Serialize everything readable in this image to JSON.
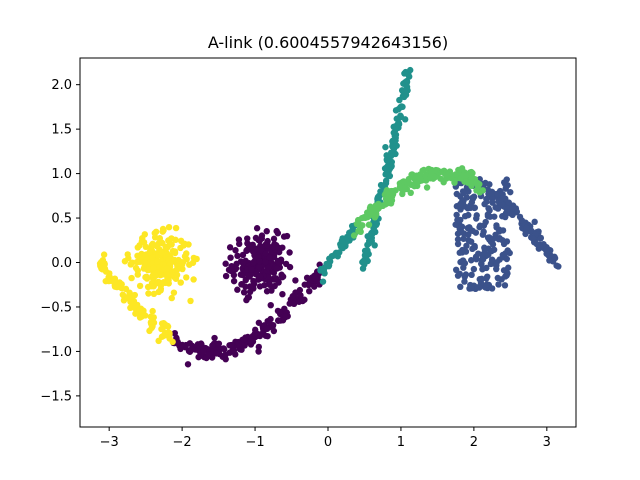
{
  "chart_data": {
    "type": "scatter",
    "title": "A-link (0.6004557942643156)",
    "xlabel": "",
    "ylabel": "",
    "xlim": [
      -3.4,
      3.4
    ],
    "ylim": [
      -1.85,
      2.3
    ],
    "xticks": [
      -3,
      -2,
      -1,
      0,
      1,
      2,
      3
    ],
    "yticks": [
      -1.5,
      -1.0,
      -0.5,
      0.0,
      0.5,
      1.0,
      1.5,
      2.0
    ],
    "ytick_labels": [
      "−1.5",
      "−1.0",
      "−0.5",
      "0.0",
      "0.5",
      "1.0",
      "1.5",
      "2.0"
    ],
    "xtick_labels": [
      "−3",
      "−2",
      "−1",
      "0",
      "1",
      "2",
      "3"
    ],
    "grid": false,
    "legend": "none",
    "clusters": [
      {
        "color": "#440154",
        "description_of_shape": "upper sine arc and blob",
        "curve": {
          "x_from": -2.15,
          "x_to": -0.1,
          "func": "sin",
          "noise": 0.05,
          "count": 180
        },
        "blob": {
          "center": [
            -0.95,
            -0.02
          ],
          "std": [
            0.18,
            0.16
          ],
          "count": 220
        }
      },
      {
        "color": "#3b528b",
        "description_of_shape": "square region and lower-right sine tail",
        "square": {
          "x": [
            1.75,
            2.5
          ],
          "y": [
            -0.3,
            0.95
          ],
          "count": 200
        },
        "curve": {
          "x_from": 2.1,
          "x_to": 3.15,
          "func": "sin",
          "noise": 0.05,
          "count": 110
        }
      },
      {
        "color": "#21918c",
        "description_of_shape": "steep line and middle sine segment",
        "line": {
          "x_from": 0.5,
          "x_to": 1.12,
          "y_from": -0.02,
          "y_to": 2.15,
          "noise": 0.05,
          "count": 150
        },
        "curve": {
          "x_from": -0.1,
          "x_to": 0.38,
          "func": "sin",
          "noise": 0.04,
          "count": 50
        }
      },
      {
        "color": "#5ec962",
        "description_of_shape": "lower sine arc",
        "curve": {
          "x_from": 0.38,
          "x_to": 2.1,
          "func": "sin",
          "noise": 0.05,
          "count": 180
        }
      },
      {
        "color": "#fde725",
        "description_of_shape": "left sine segment and blob",
        "curve": {
          "x_from": -3.15,
          "x_to": -2.15,
          "func": "sin",
          "noise": 0.05,
          "count": 90
        },
        "blob": {
          "center": [
            -2.3,
            0.0
          ],
          "std": [
            0.2,
            0.15
          ],
          "count": 240
        }
      }
    ]
  }
}
